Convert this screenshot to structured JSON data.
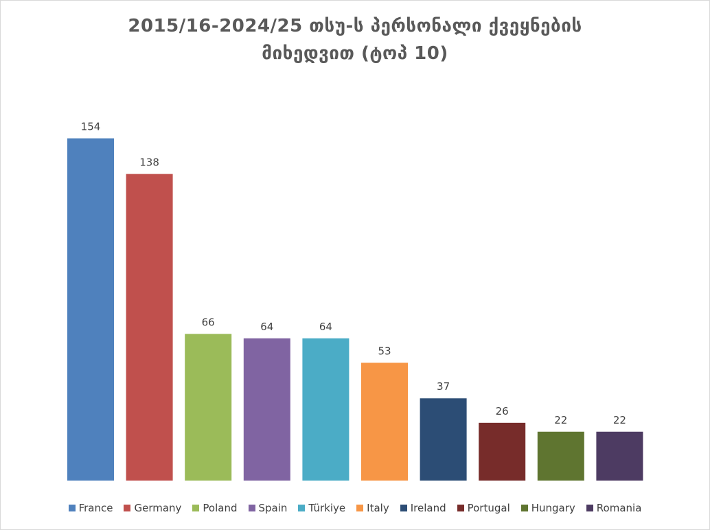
{
  "chart_data": {
    "type": "bar",
    "title_line1": "2015/16-2024/25 თსუ-ს პერსონალი ქვეყნების",
    "title_line2": "მიხედვით (ტოპ 10)",
    "categories": [
      "France",
      "Germany",
      "Poland",
      "Spain",
      "Türkiye",
      "Italy",
      "Ireland",
      "Portugal",
      "Hungary",
      "Romania"
    ],
    "values": [
      154,
      138,
      66,
      64,
      64,
      53,
      37,
      26,
      22,
      22
    ],
    "value_labels": [
      "154",
      "138",
      "66",
      "64",
      "64",
      "53",
      "37",
      "26",
      "22",
      "22"
    ],
    "colors": [
      "#4f81bd",
      "#c0504d",
      "#9bbb59",
      "#8064a2",
      "#4bacc6",
      "#f79646",
      "#2c4d75",
      "#772c2a",
      "#5f7530",
      "#4d3b62"
    ],
    "ylim": [
      0,
      160
    ],
    "grid": false,
    "legend_position": "bottom"
  }
}
